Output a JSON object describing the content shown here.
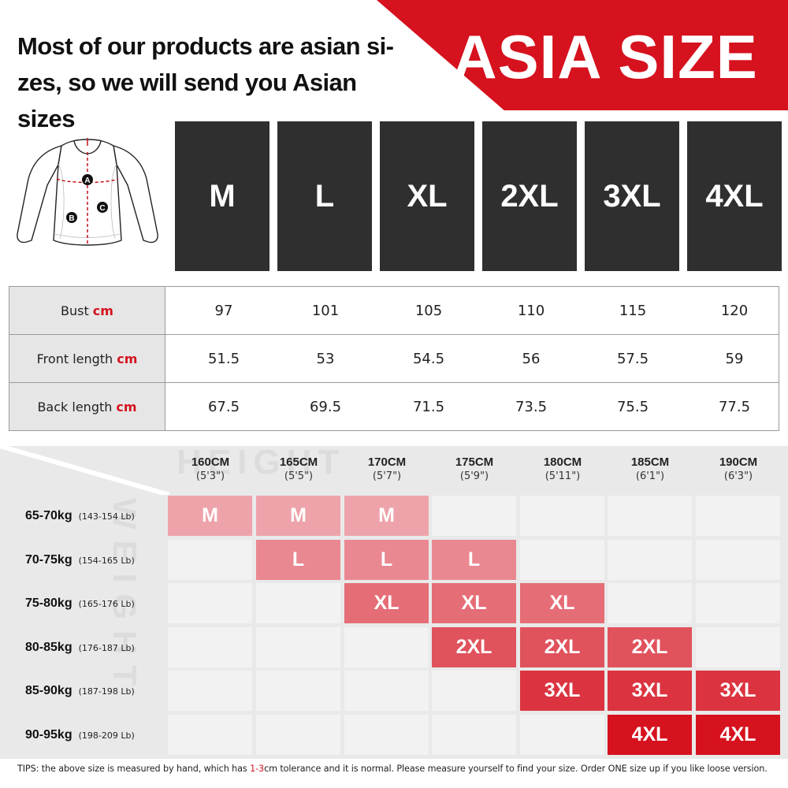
{
  "header": {
    "notice_line1": "Most of our products are asian si-",
    "notice_line2": "zes, so we will send you Asian sizes",
    "banner_title": "ASIA SIZE",
    "banner_color": "#d5121e"
  },
  "diagram": {
    "icon": "jersey-diagram-icon",
    "markers": [
      "A",
      "B",
      "C"
    ]
  },
  "sizes": [
    "M",
    "L",
    "XL",
    "2XL",
    "3XL",
    "4XL"
  ],
  "measurements": [
    {
      "label": "Bust",
      "unit": "cm",
      "values": [
        "97",
        "101",
        "105",
        "110",
        "115",
        "120"
      ]
    },
    {
      "label": "Front length",
      "unit": "cm",
      "values": [
        "51.5",
        "53",
        "54.5",
        "56",
        "57.5",
        "59"
      ]
    },
    {
      "label": "Back length",
      "unit": "cm",
      "values": [
        "67.5",
        "69.5",
        "71.5",
        "73.5",
        "75.5",
        "77.5"
      ]
    }
  ],
  "fit_chart": {
    "watermark_height": "HEIGHT",
    "watermark_weight": "WEIGHT",
    "heights": [
      {
        "cm": "160CM",
        "ft": "(5'3\")"
      },
      {
        "cm": "165CM",
        "ft": "(5'5\")"
      },
      {
        "cm": "170CM",
        "ft": "(5'7\")"
      },
      {
        "cm": "175CM",
        "ft": "(5'9\")"
      },
      {
        "cm": "180CM",
        "ft": "(5'11\")"
      },
      {
        "cm": "185CM",
        "ft": "(6'1\")"
      },
      {
        "cm": "190CM",
        "ft": "(6'3\")"
      }
    ],
    "weights": [
      {
        "kg": "65-70kg",
        "lb": "(143-154 Lb)",
        "cells": [
          "M",
          "M",
          "M",
          "",
          "",
          "",
          ""
        ]
      },
      {
        "kg": "70-75kg",
        "lb": "(154-165 Lb)",
        "cells": [
          "",
          "L",
          "L",
          "L",
          "",
          "",
          ""
        ]
      },
      {
        "kg": "75-80kg",
        "lb": "(165-176 Lb)",
        "cells": [
          "",
          "",
          "XL",
          "XL",
          "XL",
          "",
          ""
        ]
      },
      {
        "kg": "80-85kg",
        "lb": "(176-187 Lb)",
        "cells": [
          "",
          "",
          "",
          "2XL",
          "2XL",
          "2XL",
          ""
        ]
      },
      {
        "kg": "85-90kg",
        "lb": "(187-198 Lb)",
        "cells": [
          "",
          "",
          "",
          "",
          "3XL",
          "3XL",
          "3XL"
        ]
      },
      {
        "kg": "90-95kg",
        "lb": "(198-209 Lb)",
        "cells": [
          "",
          "",
          "",
          "",
          "",
          "4XL",
          "4XL"
        ]
      }
    ],
    "size_colors": {
      "M": "#eea3aa",
      "L": "#ea8891",
      "XL": "#e56d76",
      "2XL": "#e0525c",
      "3XL": "#db3440",
      "4XL": "#d5121e",
      "empty": "#f2f2f2"
    }
  },
  "tips": {
    "part1": "TIPS:  the above size is measured by hand, which has ",
    "highlight": "1-3",
    "part2": "cm tolerance and it is normal. Please measure yourself to find your size. Order ONE size up if you like loose version."
  }
}
